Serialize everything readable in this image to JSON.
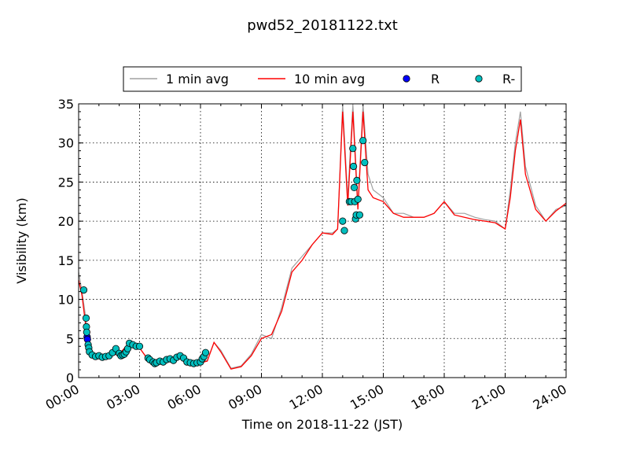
{
  "chart_data": {
    "type": "line",
    "title": "pwd52_20181122.txt",
    "xlabel": "Time on 2018-11-22 (JST)",
    "ylabel": "Visibility (km)",
    "xlim": [
      "00:00",
      "24:00"
    ],
    "ylim": [
      0,
      35
    ],
    "grid": true,
    "legend_placement": "top-center",
    "x_ticks": [
      "00:00",
      "03:00",
      "06:00",
      "09:00",
      "12:00",
      "15:00",
      "18:00",
      "21:00",
      "24:00"
    ],
    "y_ticks": [
      "0",
      "5",
      "10",
      "15",
      "20",
      "25",
      "30",
      "35"
    ],
    "series": [
      {
        "name": "1 min avg",
        "style": "line",
        "color": "#a0a0a0",
        "x": [
          "00:00",
          "00:10",
          "00:20",
          "00:30",
          "00:40",
          "01:00",
          "01:30",
          "02:00",
          "02:30",
          "03:00",
          "03:30",
          "04:00",
          "04:30",
          "05:00",
          "05:30",
          "06:00",
          "06:20",
          "06:40",
          "07:00",
          "07:30",
          "08:00",
          "08:30",
          "09:00",
          "09:30",
          "10:00",
          "10:30",
          "11:00",
          "11:30",
          "12:00",
          "12:30",
          "12:45",
          "13:00",
          "13:15",
          "13:30",
          "13:45",
          "14:00",
          "14:15",
          "14:30",
          "15:00",
          "15:30",
          "16:00",
          "16:30",
          "17:00",
          "17:30",
          "18:00",
          "18:30",
          "19:00",
          "19:30",
          "20:00",
          "20:30",
          "21:00",
          "21:15",
          "21:30",
          "21:45",
          "22:00",
          "22:30",
          "23:00",
          "23:30",
          "24:00"
        ],
        "y": [
          13.5,
          11,
          8,
          4.5,
          3,
          2.8,
          3,
          3,
          4.5,
          3.8,
          2,
          2.2,
          2.5,
          2.6,
          2.1,
          1.9,
          2.2,
          4.5,
          3.5,
          1.2,
          1.5,
          3,
          5.5,
          5,
          9,
          14,
          15.5,
          17,
          18.5,
          18.5,
          19,
          36,
          23,
          36,
          22,
          36,
          26,
          24,
          23,
          21,
          21,
          20.5,
          20.5,
          21,
          22.5,
          21,
          21,
          20.5,
          20.2,
          20,
          19,
          24,
          30,
          34,
          27,
          22,
          20,
          21.5,
          22
        ]
      },
      {
        "name": "10 min avg",
        "style": "line",
        "color": "#ff0000",
        "x": [
          "00:00",
          "00:10",
          "00:20",
          "00:30",
          "00:40",
          "01:00",
          "01:30",
          "02:00",
          "02:30",
          "03:00",
          "03:30",
          "04:00",
          "04:30",
          "05:00",
          "05:30",
          "06:00",
          "06:20",
          "06:40",
          "07:00",
          "07:30",
          "08:00",
          "08:30",
          "09:00",
          "09:30",
          "10:00",
          "10:30",
          "11:00",
          "11:30",
          "12:00",
          "12:30",
          "12:45",
          "13:00",
          "13:15",
          "13:30",
          "13:45",
          "14:00",
          "14:15",
          "14:30",
          "15:00",
          "15:30",
          "16:00",
          "16:30",
          "17:00",
          "17:30",
          "18:00",
          "18:30",
          "19:00",
          "19:30",
          "20:00",
          "20:30",
          "21:00",
          "21:15",
          "21:30",
          "21:45",
          "22:00",
          "22:30",
          "23:00",
          "23:30",
          "24:00"
        ],
        "y": [
          12.5,
          10.5,
          7,
          4,
          3,
          2.8,
          2.9,
          3,
          4.5,
          3.8,
          2,
          2.1,
          2.4,
          2.5,
          2,
          1.9,
          2.1,
          4.5,
          3.3,
          1.1,
          1.4,
          2.8,
          5,
          5.5,
          8.5,
          13.5,
          15,
          17,
          18.5,
          18.3,
          19,
          34,
          22,
          34,
          21.5,
          34,
          24,
          23,
          22.5,
          21,
          20.5,
          20.5,
          20.5,
          21,
          22.5,
          20.8,
          20.5,
          20.2,
          20,
          19.8,
          19,
          23,
          29,
          33,
          26,
          21.5,
          20,
          21.3,
          22.3
        ]
      },
      {
        "name": "R",
        "style": "marker",
        "color": "#0000ff",
        "x": [
          "00:25",
          "00:26"
        ],
        "y": [
          5.2,
          4.9
        ]
      },
      {
        "name": "R-",
        "style": "marker",
        "color": "#00bfbf",
        "x": [
          "00:15",
          "00:22",
          "00:23",
          "00:24",
          "00:28",
          "00:30",
          "00:32",
          "00:40",
          "00:50",
          "01:00",
          "01:10",
          "01:20",
          "01:30",
          "01:40",
          "01:50",
          "02:00",
          "02:05",
          "02:10",
          "02:15",
          "02:20",
          "02:25",
          "02:30",
          "02:40",
          "02:50",
          "03:00",
          "03:25",
          "03:30",
          "03:40",
          "03:45",
          "03:50",
          "04:00",
          "04:10",
          "04:20",
          "04:30",
          "04:40",
          "04:50",
          "05:00",
          "05:10",
          "05:20",
          "05:30",
          "05:40",
          "05:50",
          "06:00",
          "06:05",
          "06:10",
          "06:15",
          "13:00",
          "13:05",
          "13:20",
          "13:25",
          "13:30",
          "13:32",
          "13:34",
          "13:36",
          "13:38",
          "13:40",
          "13:42",
          "13:45",
          "13:50",
          "14:00",
          "14:05"
        ],
        "y": [
          11.2,
          7.6,
          6.5,
          5.8,
          4.2,
          3.8,
          3.3,
          2.9,
          2.7,
          2.8,
          2.6,
          2.7,
          2.8,
          3.2,
          3.7,
          3.1,
          2.8,
          2.9,
          3.0,
          3.3,
          3.7,
          4.4,
          4.2,
          4.0,
          4.0,
          2.5,
          2.3,
          2.0,
          1.8,
          1.9,
          2.1,
          2.0,
          2.3,
          2.4,
          2.2,
          2.6,
          2.8,
          2.5,
          2.0,
          1.9,
          1.8,
          1.9,
          2.0,
          2.4,
          2.7,
          3.2,
          20,
          18.8,
          22.5,
          22.5,
          29.3,
          27,
          24.3,
          22.5,
          20.3,
          20.8,
          25.2,
          22.8,
          20.8,
          30.3,
          27.5
        ]
      }
    ]
  }
}
